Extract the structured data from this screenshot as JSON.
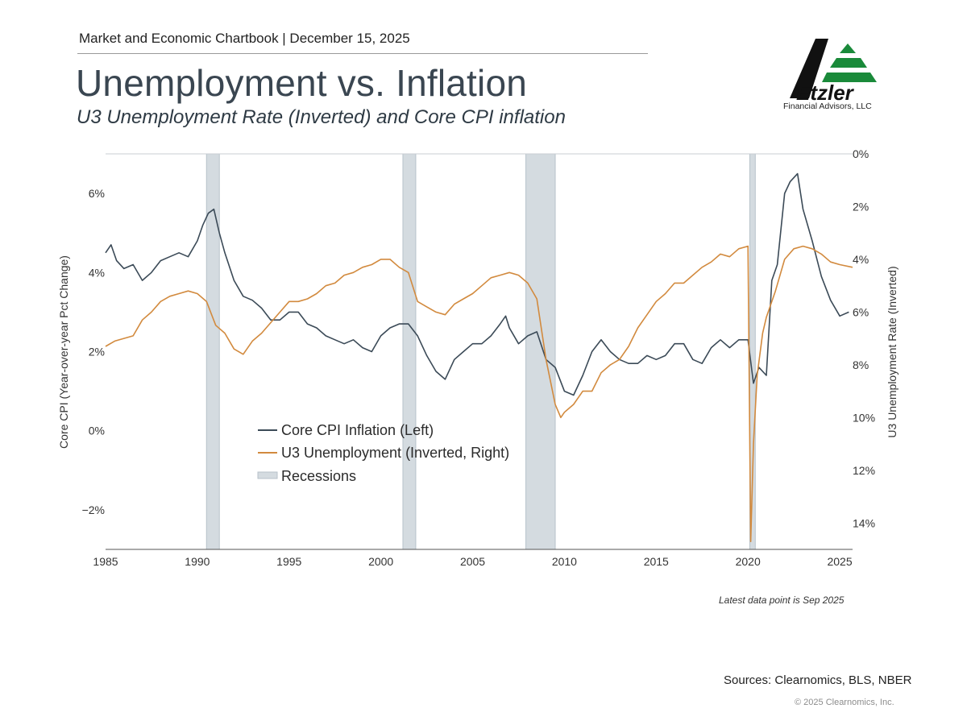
{
  "header": {
    "chartbook_line": "Market and Economic Chartbook | December 15, 2025",
    "title": "Unemployment vs. Inflation",
    "subtitle": "U3 Unemployment Rate (Inverted) and Core CPI inflation"
  },
  "brand": {
    "logo_text": "Etzler",
    "logo_tagline": "Financial Advisors, LLC",
    "colors": {
      "black": "#111111",
      "green": "#1a8a3a"
    }
  },
  "footer": {
    "latest": "Latest data point is Sep 2025",
    "sources": "Sources: Clearnomics, BLS, NBER",
    "copyright": "© 2025 Clearnomics, Inc."
  },
  "chart_data": {
    "type": "line",
    "title": "Unemployment vs. Inflation",
    "xlabel": "",
    "xlim": [
      1985,
      2025.7
    ],
    "x_ticks": [
      1985,
      1990,
      1995,
      2000,
      2005,
      2010,
      2015,
      2020,
      2025
    ],
    "left_axis": {
      "label": "Core CPI (Year-over-year Pct Change)",
      "ylim": [
        -3,
        7
      ],
      "ticks": [
        -2,
        0,
        2,
        4,
        6
      ],
      "tick_labels": [
        "−2%",
        "0%",
        "2%",
        "4%",
        "6%"
      ]
    },
    "right_axis": {
      "label": "U3 Unemployment Rate (Inverted)",
      "inverted": true,
      "ylim": [
        0,
        15
      ],
      "ticks": [
        0,
        2,
        4,
        6,
        8,
        10,
        12,
        14
      ],
      "tick_labels": [
        "0%",
        "2%",
        "4%",
        "6%",
        "8%",
        "10%",
        "12%",
        "14%"
      ]
    },
    "legend": {
      "placement": "lower-left-center",
      "entries": [
        "Core CPI Inflation (Left)",
        "U3 Unemployment (Inverted, Right)",
        "Recessions"
      ]
    },
    "colors": {
      "core_cpi": "#3b4a57",
      "unemployment": "#d28a3e",
      "recession": "#d4dbe0",
      "recession_edge": "#b7c2ca"
    },
    "recessions": [
      [
        1990.5,
        1991.2
      ],
      [
        2001.2,
        2001.9
      ],
      [
        2007.9,
        2009.5
      ],
      [
        2020.1,
        2020.4
      ]
    ],
    "series": [
      {
        "name": "Core CPI Inflation (Left)",
        "axis": "left",
        "x": [
          1985,
          1985.3,
          1985.6,
          1986,
          1986.5,
          1987,
          1987.5,
          1988,
          1988.5,
          1989,
          1989.5,
          1990,
          1990.3,
          1990.6,
          1990.9,
          1991.2,
          1991.5,
          1992,
          1992.5,
          1993,
          1993.5,
          1994,
          1994.5,
          1995,
          1995.5,
          1996,
          1996.5,
          1997,
          1997.5,
          1998,
          1998.5,
          1999,
          1999.5,
          2000,
          2000.5,
          2001,
          2001.5,
          2002,
          2002.5,
          2003,
          2003.5,
          2004,
          2004.5,
          2005,
          2005.5,
          2006,
          2006.5,
          2006.8,
          2007,
          2007.5,
          2008,
          2008.5,
          2009,
          2009.5,
          2010,
          2010.5,
          2011,
          2011.5,
          2012,
          2012.5,
          2013,
          2013.5,
          2014,
          2014.5,
          2015,
          2015.5,
          2016,
          2016.5,
          2017,
          2017.5,
          2018,
          2018.5,
          2019,
          2019.5,
          2020,
          2020.3,
          2020.6,
          2021,
          2021.3,
          2021.6,
          2022,
          2022.3,
          2022.7,
          2023,
          2023.5,
          2024,
          2024.5,
          2025,
          2025.5
        ],
        "y": [
          4.5,
          4.7,
          4.3,
          4.1,
          4.2,
          3.8,
          4.0,
          4.3,
          4.4,
          4.5,
          4.4,
          4.8,
          5.2,
          5.5,
          5.6,
          5.0,
          4.5,
          3.8,
          3.4,
          3.3,
          3.1,
          2.8,
          2.8,
          3.0,
          3.0,
          2.7,
          2.6,
          2.4,
          2.3,
          2.2,
          2.3,
          2.1,
          2.0,
          2.4,
          2.6,
          2.7,
          2.7,
          2.4,
          1.9,
          1.5,
          1.3,
          1.8,
          2.0,
          2.2,
          2.2,
          2.4,
          2.7,
          2.9,
          2.6,
          2.2,
          2.4,
          2.5,
          1.8,
          1.6,
          1.0,
          0.9,
          1.4,
          2.0,
          2.3,
          2.0,
          1.8,
          1.7,
          1.7,
          1.9,
          1.8,
          1.9,
          2.2,
          2.2,
          1.8,
          1.7,
          2.1,
          2.3,
          2.1,
          2.3,
          2.3,
          1.2,
          1.6,
          1.4,
          3.8,
          4.2,
          6.0,
          6.3,
          6.5,
          5.6,
          4.8,
          3.9,
          3.3,
          2.9,
          3.0
        ]
      },
      {
        "name": "U3 Unemployment (Inverted, Right)",
        "axis": "right",
        "x": [
          1985,
          1985.5,
          1986,
          1986.5,
          1987,
          1987.5,
          1988,
          1988.5,
          1989,
          1989.5,
          1990,
          1990.5,
          1991,
          1991.5,
          1992,
          1992.5,
          1993,
          1993.5,
          1994,
          1994.5,
          1995,
          1995.5,
          1996,
          1996.5,
          1997,
          1997.5,
          1998,
          1998.5,
          1999,
          1999.5,
          2000,
          2000.5,
          2001,
          2001.5,
          2002,
          2002.5,
          2003,
          2003.5,
          2004,
          2004.5,
          2005,
          2005.5,
          2006,
          2006.5,
          2007,
          2007.5,
          2008,
          2008.5,
          2009,
          2009.5,
          2009.8,
          2010,
          2010.5,
          2011,
          2011.5,
          2012,
          2012.5,
          2013,
          2013.5,
          2014,
          2014.5,
          2015,
          2015.5,
          2016,
          2016.5,
          2017,
          2017.5,
          2018,
          2018.5,
          2019,
          2019.5,
          2020,
          2020.15,
          2020.3,
          2020.5,
          2020.8,
          2021,
          2021.5,
          2022,
          2022.5,
          2023,
          2023.5,
          2024,
          2024.5,
          2025,
          2025.7
        ],
        "y": [
          7.3,
          7.1,
          7.0,
          6.9,
          6.3,
          6.0,
          5.6,
          5.4,
          5.3,
          5.2,
          5.3,
          5.6,
          6.5,
          6.8,
          7.4,
          7.6,
          7.1,
          6.8,
          6.4,
          6.0,
          5.6,
          5.6,
          5.5,
          5.3,
          5.0,
          4.9,
          4.6,
          4.5,
          4.3,
          4.2,
          4.0,
          4.0,
          4.3,
          4.5,
          5.6,
          5.8,
          6.0,
          6.1,
          5.7,
          5.5,
          5.3,
          5.0,
          4.7,
          4.6,
          4.5,
          4.6,
          4.9,
          5.5,
          7.8,
          9.5,
          10.0,
          9.8,
          9.5,
          9.0,
          9.0,
          8.3,
          8.0,
          7.8,
          7.3,
          6.6,
          6.1,
          5.6,
          5.3,
          4.9,
          4.9,
          4.6,
          4.3,
          4.1,
          3.8,
          3.9,
          3.6,
          3.5,
          14.7,
          11.0,
          8.4,
          6.8,
          6.2,
          5.2,
          4.0,
          3.6,
          3.5,
          3.6,
          3.8,
          4.1,
          4.2,
          4.3
        ]
      }
    ]
  }
}
